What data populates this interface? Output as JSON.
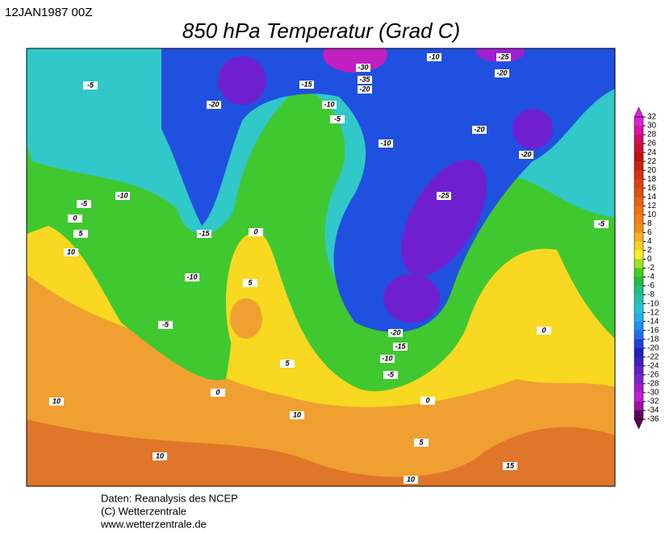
{
  "header": {
    "date": "12JAN1987 00Z",
    "title": "850 hPa Temperatur (Grad C)"
  },
  "colorbar": {
    "ticks": [
      32,
      30,
      28,
      26,
      24,
      22,
      20,
      18,
      16,
      14,
      12,
      10,
      8,
      6,
      4,
      2,
      0,
      -2,
      -4,
      -6,
      -8,
      -10,
      -12,
      -14,
      -16,
      -18,
      -20,
      -22,
      -24,
      -26,
      -28,
      -30,
      -32,
      -34,
      -36
    ],
    "colors": [
      "#e020e0",
      "#e010a0",
      "#d01060",
      "#d01030",
      "#c01010",
      "#d02010",
      "#d83010",
      "#e04010",
      "#e05010",
      "#e86010",
      "#f07010",
      "#f08010",
      "#f09018",
      "#f8b020",
      "#f8d020",
      "#f8f020",
      "#a0e020",
      "#40d020",
      "#20c040",
      "#20c080",
      "#20c0b0",
      "#20c8d0",
      "#20b0f0",
      "#2090f0",
      "#2070f0",
      "#2040e0",
      "#2020c0",
      "#4020c0",
      "#6020d0",
      "#8020d0",
      "#a020d0",
      "#c020d0",
      "#a010a0",
      "#600060"
    ]
  },
  "contour_labels": [
    -5,
    -20,
    -15,
    -10,
    -5,
    -30,
    -35,
    -20,
    -10,
    -25,
    -20,
    -20,
    -20,
    -10,
    -25,
    -5,
    -5,
    -10,
    0,
    5,
    10,
    -15,
    0,
    -10,
    5,
    -5,
    0,
    -20,
    -15,
    -10,
    -5,
    5,
    0,
    10,
    10,
    0,
    5,
    10,
    10,
    15
  ],
  "footer": {
    "lines": [
      "Daten: Reanalysis des NCEP",
      "(C) Wetterzentrale",
      "www.wetterzentrale.de"
    ]
  }
}
